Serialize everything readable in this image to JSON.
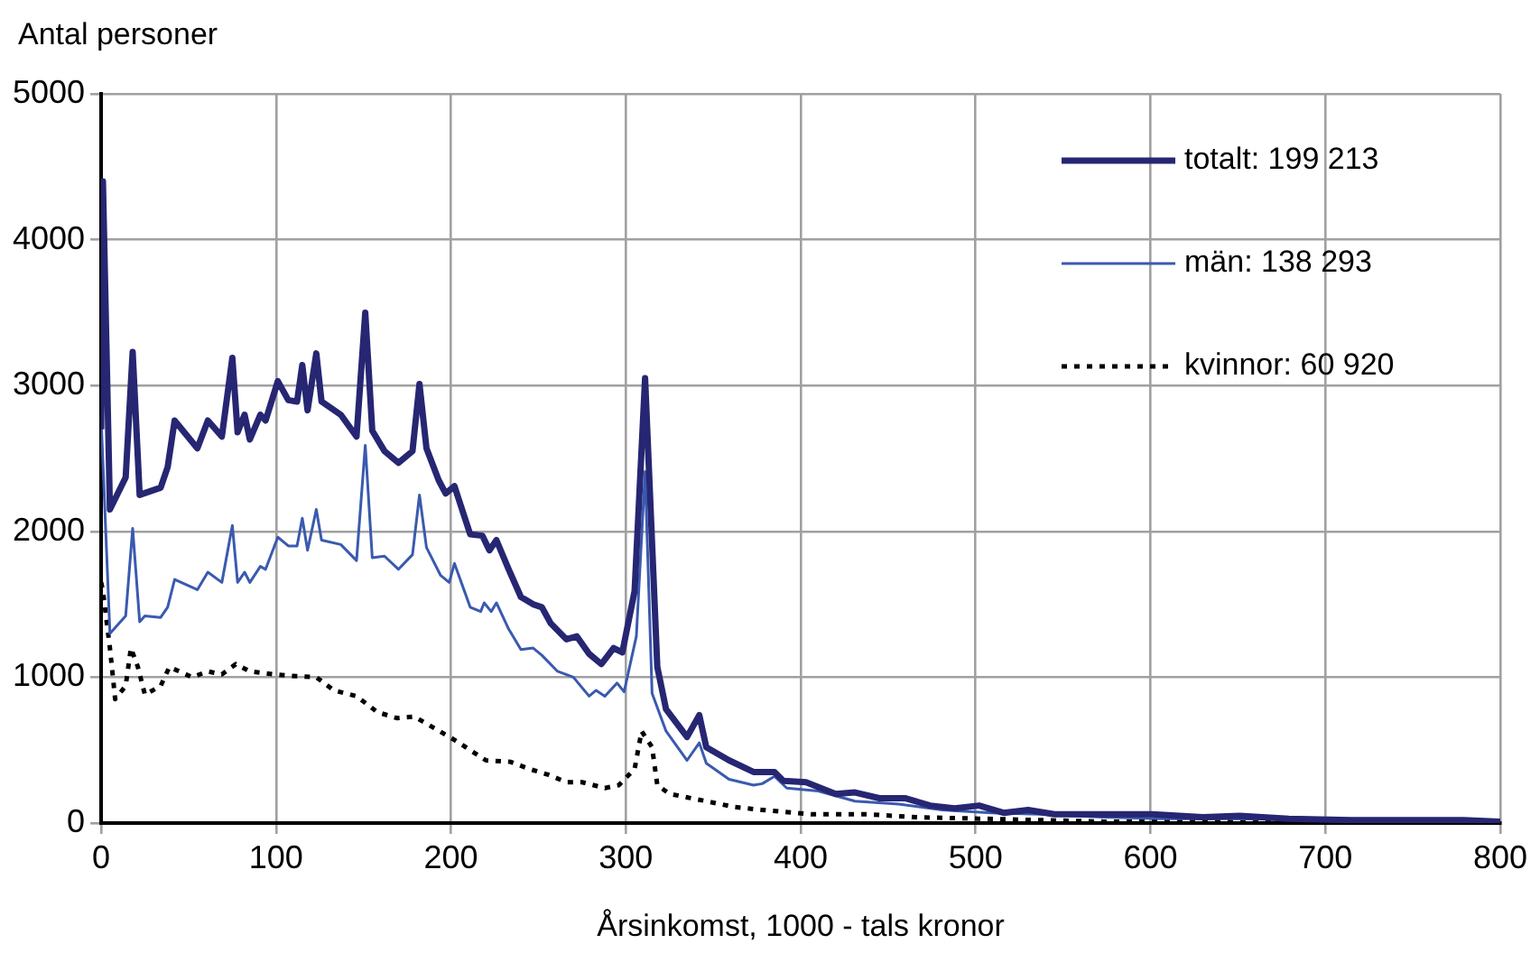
{
  "chart_data": {
    "type": "line",
    "ylabel": "Antal personer",
    "xlabel": "Årsinkomst, 1000 - tals kronor",
    "xlim": [
      0,
      800
    ],
    "xticks": [
      0,
      100,
      200,
      300,
      400,
      500,
      600,
      700,
      800
    ],
    "ylim": [
      0,
      5000
    ],
    "yticks": [
      0,
      1000,
      2000,
      3000,
      4000,
      5000
    ],
    "grid": true,
    "legend": "top right",
    "marker": "none",
    "series": [
      {
        "name": "totalt: 199 213",
        "color": "#262673",
        "line_style": "solid",
        "x": [
          0,
          1,
          5,
          14,
          18,
          22,
          34,
          38,
          42,
          55,
          61,
          69,
          75,
          78,
          82,
          85,
          91,
          94,
          101,
          107,
          112,
          115,
          118,
          123,
          126,
          137,
          146,
          151,
          155,
          162,
          170,
          178,
          182,
          186,
          193,
          197,
          202,
          211,
          218,
          222,
          226,
          233,
          240,
          247,
          252,
          257,
          266,
          272,
          279,
          286,
          293,
          298,
          305,
          311,
          318,
          323,
          335,
          342,
          346,
          359,
          373,
          385,
          390,
          403,
          420,
          431,
          445,
          460,
          474,
          488,
          502,
          516,
          530,
          545,
          573,
          601,
          630,
          651,
          679,
          715,
          750,
          779,
          800
        ],
        "values": [
          2700,
          4400,
          2150,
          2370,
          3230,
          2250,
          2300,
          2440,
          2760,
          2570,
          2760,
          2650,
          3190,
          2680,
          2800,
          2630,
          2800,
          2760,
          3030,
          2900,
          2890,
          3140,
          2830,
          3220,
          2890,
          2800,
          2650,
          3500,
          2690,
          2550,
          2470,
          2550,
          3010,
          2570,
          2350,
          2260,
          2310,
          1980,
          1970,
          1870,
          1940,
          1740,
          1550,
          1500,
          1480,
          1370,
          1260,
          1280,
          1160,
          1090,
          1200,
          1170,
          1590,
          3050,
          1070,
          780,
          590,
          740,
          520,
          430,
          350,
          350,
          290,
          280,
          200,
          210,
          170,
          170,
          120,
          100,
          120,
          70,
          90,
          60,
          60,
          60,
          40,
          50,
          30,
          20,
          20,
          20,
          10
        ]
      },
      {
        "name": "män: 138 293",
        "color": "#3a5aaf",
        "line_style": "solid",
        "x": [
          0,
          5,
          14,
          18,
          22,
          25,
          34,
          38,
          42,
          55,
          61,
          69,
          75,
          78,
          82,
          85,
          91,
          94,
          101,
          107,
          112,
          115,
          118,
          123,
          126,
          137,
          146,
          151,
          155,
          162,
          170,
          178,
          182,
          186,
          194,
          199,
          202,
          211,
          217,
          219,
          223,
          226,
          233,
          240,
          247,
          252,
          261,
          270,
          279,
          283,
          288,
          295,
          299,
          306,
          311,
          315,
          323,
          335,
          342,
          346,
          359,
          373,
          378,
          385,
          392,
          410,
          431,
          456,
          481,
          509,
          537,
          573,
          608,
          644,
          715,
          800
        ],
        "values": [
          2770,
          1300,
          1420,
          2020,
          1380,
          1420,
          1410,
          1480,
          1670,
          1600,
          1720,
          1650,
          2040,
          1650,
          1720,
          1650,
          1760,
          1740,
          1960,
          1900,
          1900,
          2090,
          1870,
          2150,
          1940,
          1910,
          1800,
          2590,
          1820,
          1830,
          1740,
          1840,
          2250,
          1890,
          1700,
          1650,
          1780,
          1480,
          1450,
          1510,
          1450,
          1510,
          1330,
          1190,
          1200,
          1150,
          1040,
          1000,
          870,
          910,
          870,
          960,
          900,
          1280,
          2410,
          890,
          630,
          430,
          550,
          410,
          300,
          260,
          270,
          320,
          240,
          220,
          150,
          130,
          90,
          70,
          60,
          40,
          30,
          30,
          20,
          10
        ]
      },
      {
        "name": "kvinnor: 60 920",
        "color": "#000000",
        "line_style": "dotted",
        "x": [
          0,
          1,
          5,
          8,
          14,
          17,
          21,
          25,
          34,
          39,
          52,
          61,
          69,
          77,
          85,
          98,
          108,
          123,
          133,
          146,
          158,
          169,
          179,
          192,
          202,
          220,
          234,
          245,
          256,
          266,
          275,
          288,
          296,
          305,
          309,
          315,
          318,
          325,
          346,
          362,
          378,
          406,
          438,
          466,
          502,
          537,
          573,
          644,
          800
        ],
        "values": [
          1650,
          1590,
          1200,
          850,
          940,
          1200,
          1070,
          880,
          940,
          1070,
          1000,
          1040,
          1020,
          1090,
          1040,
          1020,
          1010,
          1000,
          910,
          870,
          760,
          720,
          730,
          640,
          570,
          430,
          420,
          370,
          330,
          280,
          280,
          240,
          260,
          370,
          630,
          520,
          260,
          200,
          150,
          110,
          90,
          60,
          60,
          40,
          30,
          20,
          10,
          10,
          5
        ]
      }
    ]
  }
}
